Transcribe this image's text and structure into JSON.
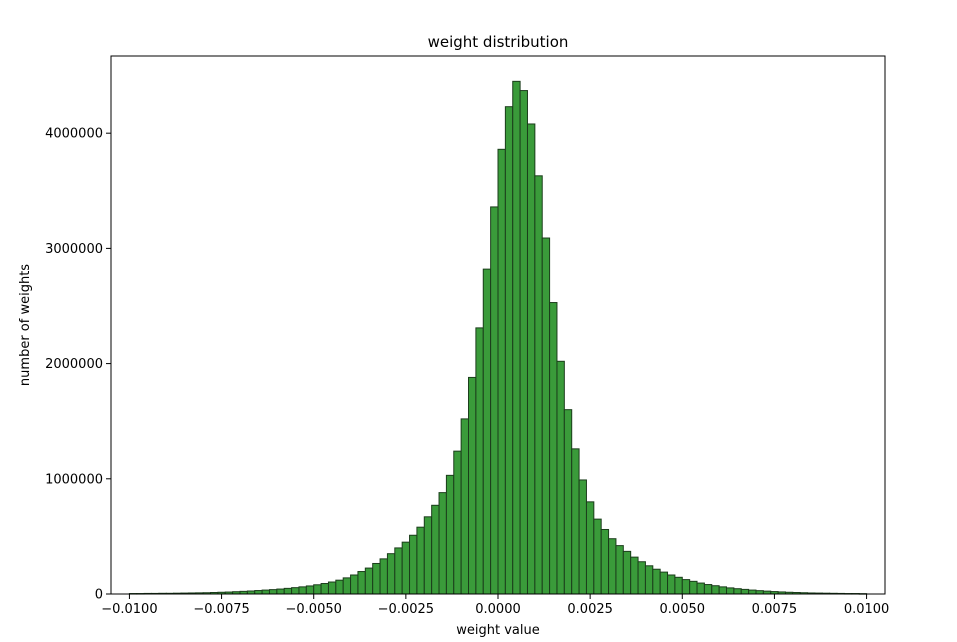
{
  "chart_data": {
    "type": "bar",
    "title": "weight distribution",
    "xlabel": "weight value",
    "ylabel": "number of weights",
    "xlim": [
      -0.0105,
      0.0105
    ],
    "ylim": [
      0,
      4670000
    ],
    "x_ticks": [
      -0.01,
      -0.0075,
      -0.005,
      -0.0025,
      0.0,
      0.0025,
      0.005,
      0.0075,
      0.01
    ],
    "x_tick_labels": [
      "−0.0100",
      "−0.0075",
      "−0.0050",
      "−0.0025",
      "0.0000",
      "0.0025",
      "0.0050",
      "0.0075",
      "0.0100"
    ],
    "y_ticks": [
      0,
      1000000,
      2000000,
      3000000,
      4000000
    ],
    "y_tick_labels": [
      "0",
      "1000000",
      "2000000",
      "3000000",
      "4000000"
    ],
    "grid": false,
    "colors": {
      "bar_fill": "#3a9b3a",
      "bar_edge": "#1b3d1b"
    },
    "bin_start": -0.01,
    "bin_width": 0.0002,
    "values": [
      4000,
      4000,
      5000,
      5000,
      6000,
      6000,
      7000,
      8000,
      9000,
      10000,
      11000,
      13000,
      15000,
      17000,
      20000,
      23000,
      26000,
      30000,
      34000,
      38000,
      43000,
      49000,
      55000,
      62000,
      70000,
      80000,
      91000,
      104000,
      120000,
      140000,
      165000,
      195000,
      225000,
      265000,
      305000,
      350000,
      400000,
      450000,
      510000,
      580000,
      670000,
      770000,
      880000,
      1030000,
      1240000,
      1520000,
      1880000,
      2310000,
      2820000,
      3360000,
      3860000,
      4230000,
      4450000,
      4370000,
      4080000,
      3630000,
      3090000,
      2530000,
      2020000,
      1600000,
      1260000,
      990000,
      800000,
      650000,
      560000,
      480000,
      420000,
      370000,
      320000,
      280000,
      245000,
      215000,
      190000,
      165000,
      145000,
      125000,
      110000,
      95000,
      82000,
      72000,
      62000,
      53000,
      46000,
      40000,
      34000,
      29000,
      25000,
      21000,
      18000,
      15000,
      13000,
      11000,
      9000,
      8000,
      7000,
      6000,
      5000,
      4000,
      4000,
      3000
    ]
  }
}
